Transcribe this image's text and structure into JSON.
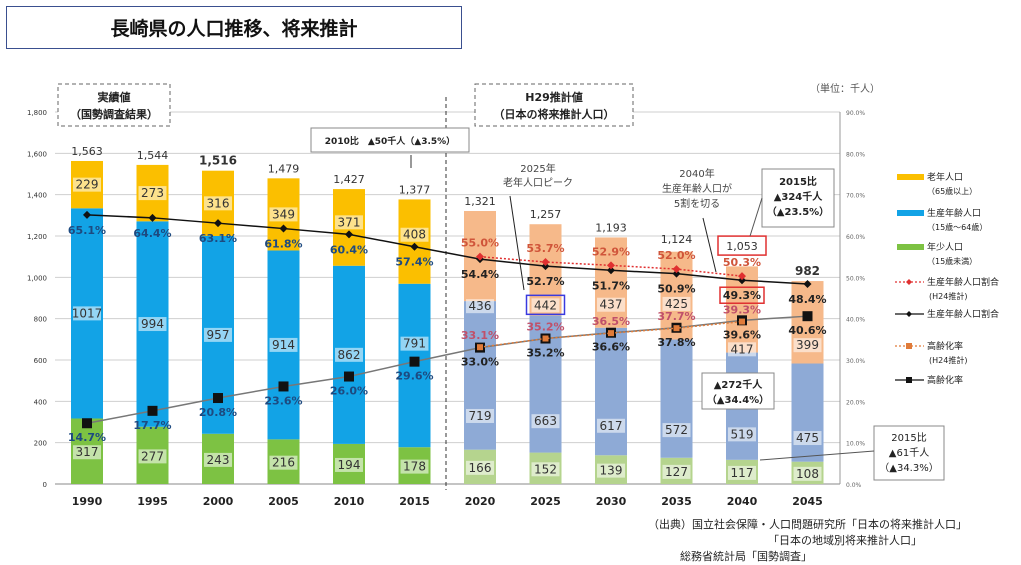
{
  "title": "長崎県の人口推移、将来推計",
  "unit": "（単位：千人）",
  "source": [
    "（出典）国立社会保障・人口問題研究所「日本の将来推計人口」",
    "「日本の地域別将来推計人口」",
    "総務省統計局「国勢調査」"
  ],
  "chart_data": {
    "type": "bar",
    "stacked": true,
    "categories": [
      "1990",
      "1995",
      "2000",
      "2005",
      "2010",
      "2015",
      "2020",
      "2025",
      "2030",
      "2035",
      "2040",
      "2045"
    ],
    "left_ylim": [
      0,
      1800
    ],
    "left_ticks": [
      "0",
      "200",
      "400",
      "600",
      "800",
      "1,000",
      "1,200",
      "1,400",
      "1,600",
      "1,800"
    ],
    "right_ylim": [
      0,
      90
    ],
    "right_ticks": [
      "0.0%",
      "10.0%",
      "20.0%",
      "30.0%",
      "40.0%",
      "50.0%",
      "60.0%",
      "70.0%",
      "80.0%",
      "90.0%"
    ],
    "grid": true,
    "series": [
      {
        "name": "年少人口",
        "sub": "（15歳未満）",
        "values": [
          317,
          277,
          243,
          216,
          194,
          178,
          166,
          152,
          139,
          127,
          117,
          108
        ],
        "color": "#7dc243",
        "color_projected": "#b5d48e"
      },
      {
        "name": "生産年齢人口",
        "sub": "（15歳〜64歳）",
        "values": [
          1017,
          994,
          957,
          914,
          862,
          791,
          719,
          663,
          617,
          572,
          519,
          475
        ],
        "color": "#12a3e6",
        "color_projected": "#8eaad6"
      },
      {
        "name": "老年人口",
        "sub": "（65歳以上）",
        "values": [
          229,
          273,
          316,
          349,
          371,
          408,
          436,
          442,
          437,
          425,
          417,
          399
        ],
        "color": "#fbbf00",
        "color_projected": "#f6b98a"
      }
    ],
    "totals": [
      "1,563",
      "1,544",
      "1,516",
      "1,479",
      "1,427",
      "1,377",
      "1,321",
      "1,257",
      "1,193",
      "1,124",
      "1,053",
      "982"
    ],
    "lines": [
      {
        "name": "生産年齢人口割合",
        "values": [
          65.1,
          64.4,
          63.1,
          61.8,
          60.4,
          57.4,
          54.4,
          52.7,
          51.7,
          50.9,
          49.3,
          48.4
        ],
        "color": "#111111",
        "marker": "diamond"
      },
      {
        "name": "生産年齢人口割合",
        "sub": "(H24推計)",
        "values": [
          null,
          null,
          null,
          null,
          null,
          null,
          55.0,
          53.7,
          52.9,
          52.0,
          50.3,
          null
        ],
        "color": "#e03030",
        "marker": "diamond",
        "dash": true
      },
      {
        "name": "高齢化率",
        "values": [
          14.7,
          17.7,
          20.8,
          23.6,
          26.0,
          29.6,
          33.0,
          35.2,
          36.6,
          37.8,
          39.6,
          40.6
        ],
        "color": "#111111",
        "marker": "square"
      },
      {
        "name": "高齢化率",
        "sub": "(H24推計)",
        "values": [
          null,
          null,
          null,
          null,
          null,
          null,
          33.1,
          35.2,
          36.5,
          37.7,
          39.3,
          null
        ],
        "color": "#e07b39",
        "marker": "square",
        "dash": true
      }
    ],
    "period_labels": [
      {
        "line1": "実績値",
        "line2": "（国勢調査結果）"
      },
      {
        "line1": "H29推計値",
        "line2": "（日本の将来推計人口）"
      }
    ],
    "annotations": {
      "a2010": "2010比　▲50千人（▲3.5%）",
      "peak": [
        "2025年",
        "老年人口ピーク"
      ],
      "half": [
        "2040年",
        "生産年齢人口が",
        "5割を切る"
      ],
      "total_drop": [
        "2015比",
        "▲324千人",
        "（▲23.5%）"
      ],
      "prod_drop": [
        "▲272千人",
        "（▲34.4%）"
      ],
      "young_drop": [
        "2015比",
        "▲61千人",
        "（▲34.3%）"
      ]
    }
  }
}
